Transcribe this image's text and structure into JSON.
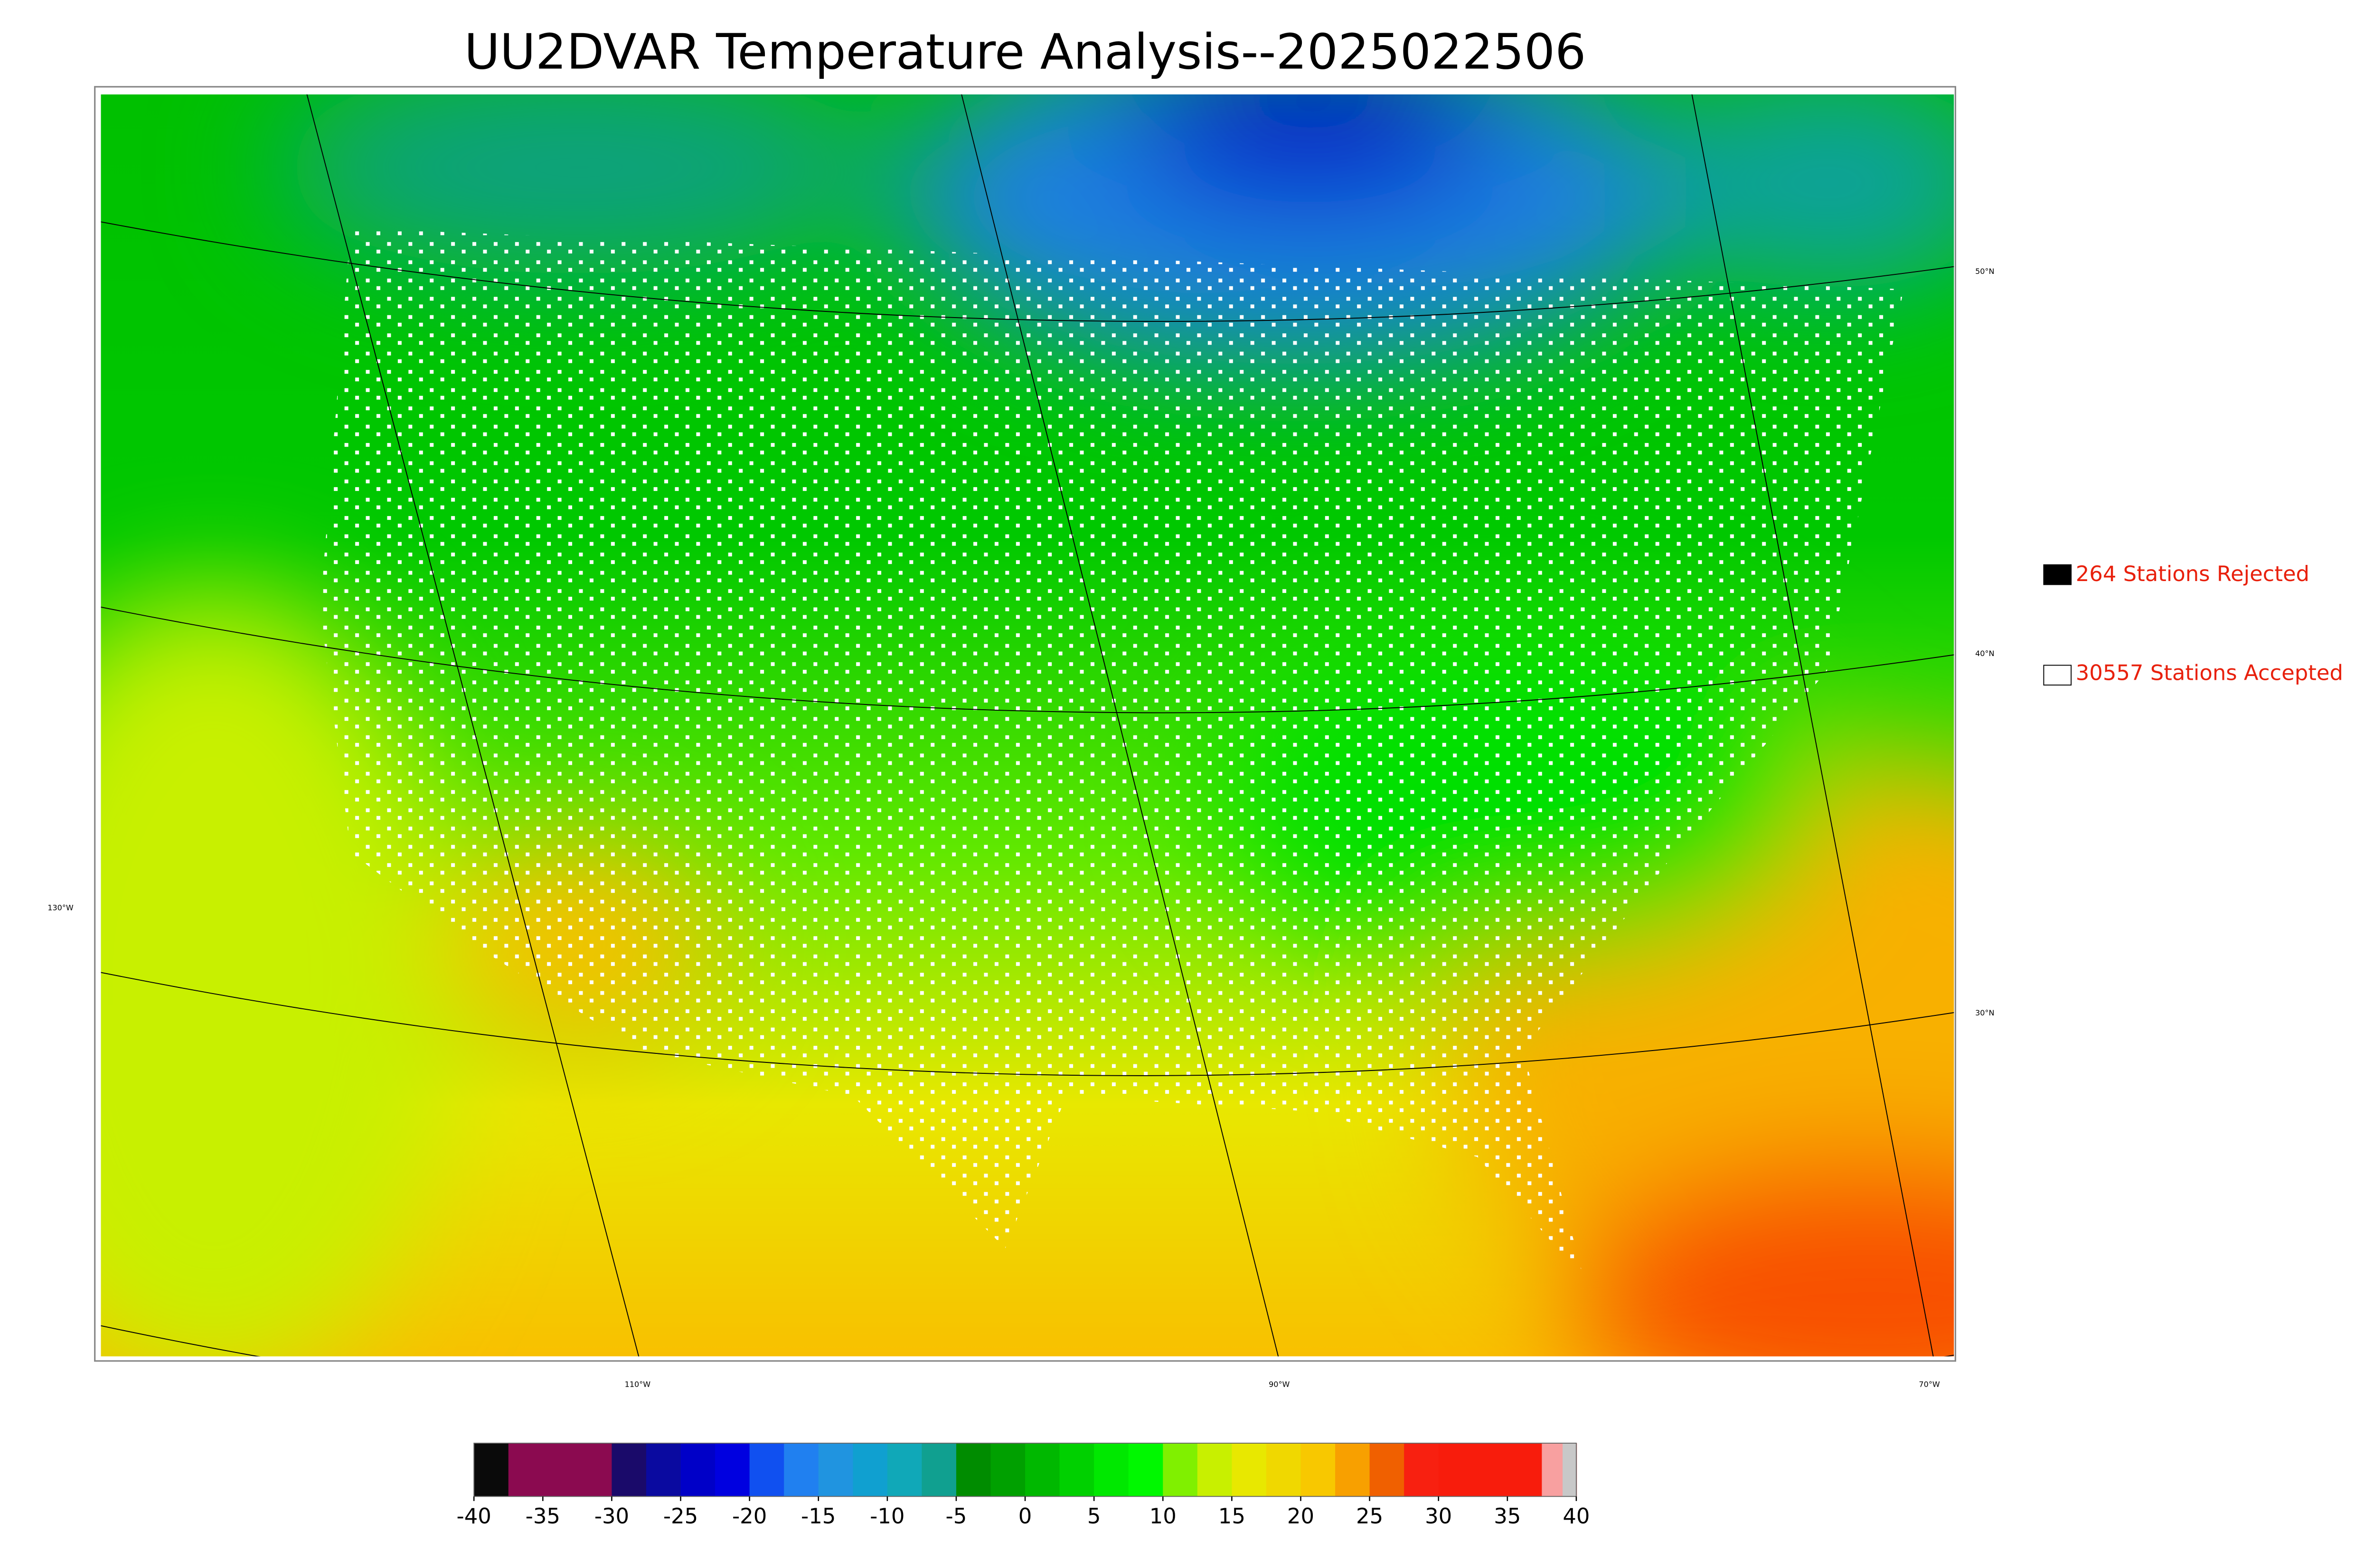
{
  "title": "UU2DVAR Temperature Analysis--2025022506",
  "legend": [
    {
      "label": "264 Stations Rejected",
      "swatch": "#000000"
    },
    {
      "label": "30557 Stations Accepted",
      "swatch": "#ffffff"
    }
  ],
  "graticule": {
    "lat_labels": [
      "50°N",
      "40°N",
      "30°N"
    ],
    "lon_labels": [
      "130°W",
      "110°W",
      "90°W",
      "70°W"
    ]
  },
  "colorbar": {
    "range": [
      -40,
      40
    ],
    "ticks": [
      -40,
      -35,
      -30,
      -25,
      -20,
      -15,
      -10,
      -5,
      0,
      5,
      10,
      15,
      20,
      25,
      30,
      35,
      40
    ],
    "colors": [
      "#0a0a0a",
      "#8b0a50",
      "#8b0a50",
      "#8b0a50",
      "#1a0a6a",
      "#0a0aa0",
      "#0000c8",
      "#0000e0",
      "#1050f0",
      "#2080f0",
      "#2094e0",
      "#10a0d0",
      "#10a8b8",
      "#10a090",
      "#008c00",
      "#00a000",
      "#00b800",
      "#00d000",
      "#00e800",
      "#00f800",
      "#80f000",
      "#c8f000",
      "#e8e800",
      "#f0d800",
      "#f8c800",
      "#f8a000",
      "#f06000",
      "#f82010",
      "#f81c0c",
      "#f81c0c",
      "#f81c0c",
      "#f8a0a0"
    ]
  }
}
